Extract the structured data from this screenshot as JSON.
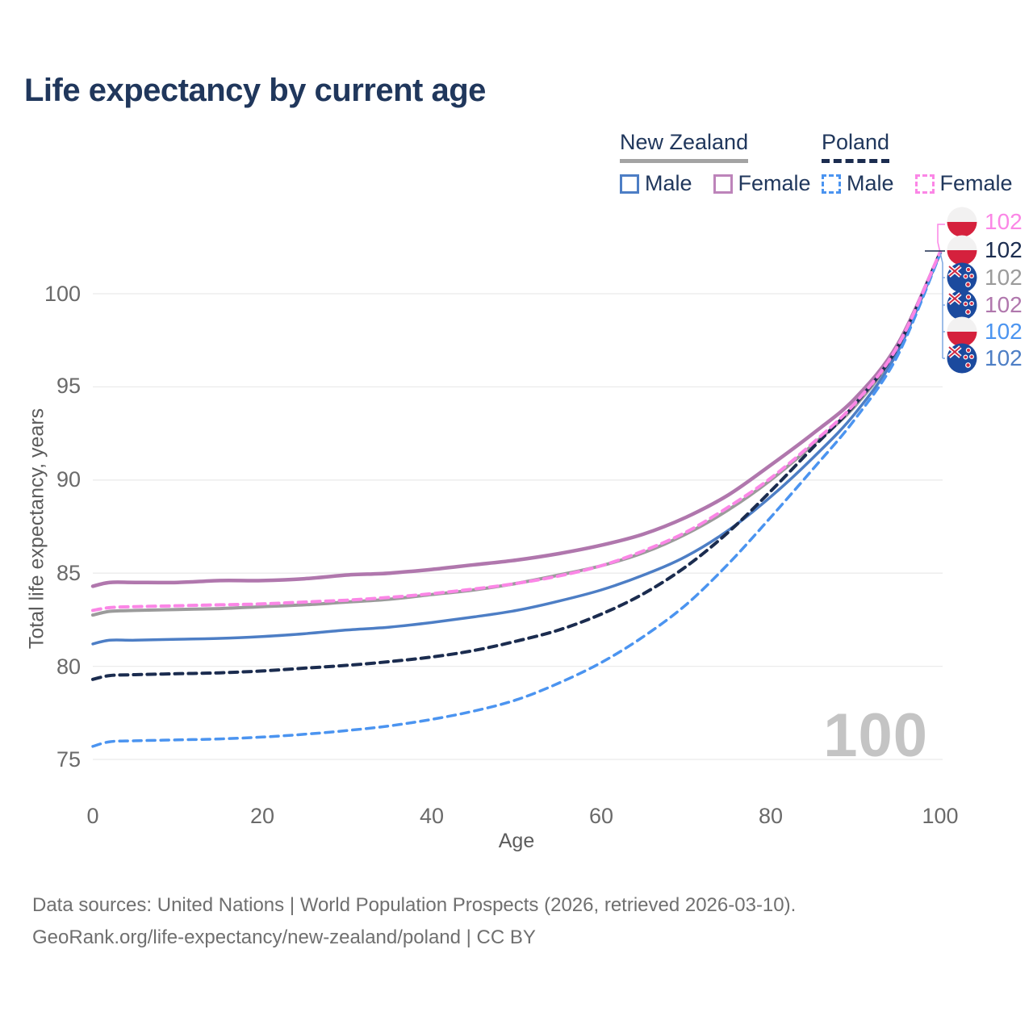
{
  "title": "Life expectancy by current age",
  "legend": {
    "groups": [
      {
        "country": "New Zealand",
        "line_style": "solid",
        "line_color": "#a3a3a3",
        "items": [
          {
            "label": "Male",
            "color": "#4d7ec5"
          },
          {
            "label": "Female",
            "color": "#bd84ba"
          }
        ]
      },
      {
        "country": "Poland",
        "line_style": "dashed",
        "line_color": "#1b2c4f",
        "items": [
          {
            "label": "Male",
            "color": "#4b94f0"
          },
          {
            "label": "Female",
            "color": "#fb86e6"
          }
        ]
      }
    ]
  },
  "chart_data": {
    "type": "line",
    "title": "Life expectancy by current age",
    "xlabel": "Age",
    "ylabel": "Total life expectancy, years",
    "xlim": [
      0,
      100
    ],
    "ylim": [
      74.5,
      103
    ],
    "xticks": [
      0,
      20,
      40,
      60,
      80,
      100
    ],
    "yticks": [
      75,
      80,
      85,
      90,
      95,
      100
    ],
    "grid": "horizontal",
    "legend_position": "top-right",
    "x": [
      0,
      2,
      5,
      10,
      15,
      20,
      25,
      30,
      35,
      40,
      45,
      50,
      55,
      60,
      65,
      70,
      75,
      80,
      85,
      90,
      95,
      100
    ],
    "series": [
      {
        "name": "New Zealand Total",
        "country": "New Zealand",
        "sex": "Total",
        "style": "solid",
        "color": "#9b9b9b",
        "values": [
          82.75,
          82.95,
          83.0,
          83.05,
          83.1,
          83.2,
          83.3,
          83.45,
          83.6,
          83.85,
          84.1,
          84.45,
          84.9,
          85.4,
          86.1,
          87.1,
          88.4,
          90.0,
          91.9,
          94.0,
          97.1,
          102.2
        ]
      },
      {
        "name": "New Zealand Female",
        "country": "New Zealand",
        "sex": "Female",
        "style": "solid",
        "color": "#b077ad",
        "values": [
          84.3,
          84.5,
          84.5,
          84.5,
          84.6,
          84.6,
          84.7,
          84.9,
          85.0,
          85.2,
          85.45,
          85.7,
          86.05,
          86.5,
          87.1,
          88.0,
          89.2,
          90.8,
          92.5,
          94.4,
          97.3,
          102.2
        ]
      },
      {
        "name": "New Zealand Male",
        "country": "New Zealand",
        "sex": "Male",
        "style": "solid",
        "color": "#4d7ec5",
        "values": [
          81.2,
          81.4,
          81.4,
          81.45,
          81.5,
          81.6,
          81.75,
          81.95,
          82.1,
          82.35,
          82.65,
          83.0,
          83.5,
          84.1,
          84.9,
          85.9,
          87.3,
          89.1,
          91.2,
          93.6,
          96.9,
          102.2
        ]
      },
      {
        "name": "Poland Total",
        "country": "Poland",
        "sex": "Total",
        "style": "dashed",
        "color": "#1b2c4f",
        "values": [
          79.3,
          79.5,
          79.55,
          79.6,
          79.65,
          79.75,
          79.9,
          80.05,
          80.25,
          80.5,
          80.85,
          81.35,
          81.95,
          82.8,
          83.9,
          85.35,
          87.2,
          89.4,
          91.75,
          94.1,
          97.15,
          102.2
        ]
      },
      {
        "name": "Poland Male",
        "country": "Poland",
        "sex": "Male",
        "style": "dashed",
        "color": "#4b94f0",
        "values": [
          75.7,
          75.95,
          76.0,
          76.05,
          76.1,
          76.2,
          76.35,
          76.55,
          76.8,
          77.15,
          77.6,
          78.2,
          79.1,
          80.2,
          81.6,
          83.3,
          85.5,
          88.0,
          90.6,
          93.3,
          96.7,
          102.15
        ]
      },
      {
        "name": "Poland Female",
        "country": "Poland",
        "sex": "Female",
        "style": "dashed",
        "color": "#fb86e6",
        "values": [
          83.0,
          83.15,
          83.2,
          83.25,
          83.3,
          83.35,
          83.45,
          83.55,
          83.7,
          83.9,
          84.15,
          84.45,
          84.85,
          85.4,
          86.2,
          87.2,
          88.55,
          90.1,
          92.0,
          94.15,
          97.2,
          102.25
        ]
      }
    ],
    "end_value_labels": [
      {
        "series": "Poland Female",
        "country": "Poland",
        "flag": "poland-flag",
        "value": "102",
        "color": "#fb86e6"
      },
      {
        "series": "Poland Total",
        "country": "Poland",
        "flag": "poland-flag",
        "value": "102",
        "color": "#1b2c4f"
      },
      {
        "series": "New Zealand Total",
        "country": "New Zealand",
        "flag": "new-zealand-flag",
        "value": "102",
        "color": "#9b9b9b"
      },
      {
        "series": "New Zealand Female",
        "country": "New Zealand",
        "flag": "new-zealand-flag",
        "value": "102",
        "color": "#b077ad"
      },
      {
        "series": "Poland Male",
        "country": "Poland",
        "flag": "poland-flag",
        "value": "102",
        "color": "#4b94f0"
      },
      {
        "series": "New Zealand Male",
        "country": "New Zealand",
        "flag": "new-zealand-flag",
        "value": "102",
        "color": "#4d7ec5"
      }
    ],
    "watermark_current_age": "100"
  },
  "ticks": {
    "y": [
      "100",
      "95",
      "90",
      "85",
      "80",
      "75"
    ],
    "x": [
      "0",
      "20",
      "40",
      "60",
      "80",
      "100"
    ]
  },
  "footer": {
    "line1": "Data sources: United Nations | World Population Prospects (2026, retrieved 2026-03-10).",
    "line2": "GeoRank.org/life-expectancy/new-zealand/poland | CC BY"
  }
}
